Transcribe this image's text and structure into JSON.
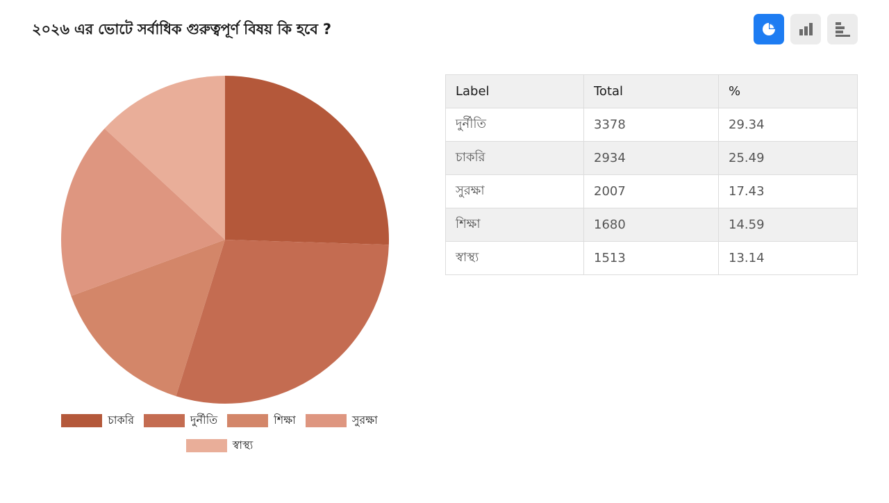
{
  "title": "২০২৬ এর ভোটে সর্বাধিক গুরুত্বপূর্ণ বিষয় কি হবে ?",
  "toolbar": {
    "buttons": [
      {
        "icon": "pie-chart-icon",
        "active": true
      },
      {
        "icon": "bar-chart-icon",
        "active": false
      },
      {
        "icon": "horizontal-bar-chart-icon",
        "active": false
      }
    ],
    "active_color": "#1d7cf2",
    "inactive_color": "#ececec",
    "icon_color": "#6b6b6b"
  },
  "table": {
    "headers": [
      "Label",
      "Total",
      "%"
    ],
    "rows": [
      [
        "দুর্নীতি",
        "3378",
        "29.34"
      ],
      [
        "চাকরি",
        "2934",
        "25.49"
      ],
      [
        "সুরক্ষা",
        "2007",
        "17.43"
      ],
      [
        "শিক্ষা",
        "1680",
        "14.59"
      ],
      [
        "স্বাস্থ্য",
        "1513",
        "13.14"
      ]
    ]
  },
  "chart_data": {
    "type": "pie",
    "title": "২০২৬ এর ভোটে সর্বাধিক গুরুত্বপূর্ণ বিষয় কি হবে ?",
    "start": "top, clockwise",
    "categories": [
      "চাকরি",
      "দুর্নীতি",
      "শিক্ষা",
      "সুরক্ষা",
      "স্বাস্থ্য"
    ],
    "values": [
      2934,
      3378,
      1680,
      2007,
      1513
    ],
    "colors": [
      "#b4583a",
      "#c46c51",
      "#d38669",
      "#de9680",
      "#e9ae99"
    ],
    "legend_position": "bottom"
  }
}
